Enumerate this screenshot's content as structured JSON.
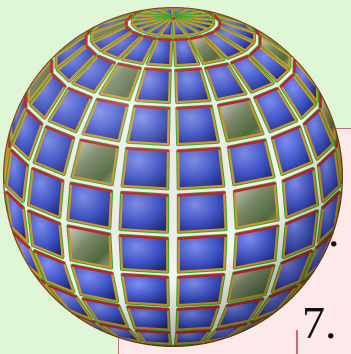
{
  "slide": {
    "list_numbers": [
      "6.",
      "7."
    ],
    "colors": {
      "background": "#dff7d6",
      "panel": "#fde8ea",
      "panel_border": "#c96b78",
      "tile_blue": "#3e53c8",
      "rib_orange": "#d9962e",
      "rib_red": "#c8202a",
      "rib_green": "#2faa2f"
    },
    "graphic": {
      "name": "segmented-globe-with-satellite-image-tiles",
      "parallels": 12,
      "meridians": 18
    }
  }
}
